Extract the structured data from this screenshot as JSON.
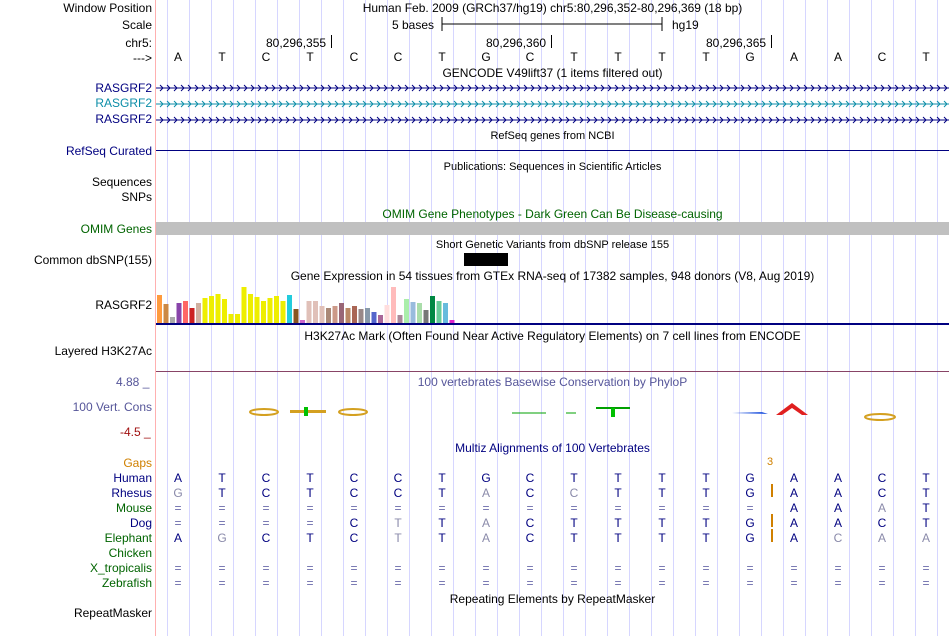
{
  "header": {
    "window_label": "Window Position",
    "window_text": "Human Feb. 2009 (GRCh37/hg19)  chr5:80,296,352-80,296,369 (18 bp)",
    "scale_label": "Scale",
    "scale_text": "5 bases",
    "scale_assembly": "hg19",
    "chrom_label": "chr5:",
    "pos_ticks": [
      "80,296,355",
      "80,296,360",
      "80,296,365"
    ],
    "arrow_label": "--->",
    "sequence": [
      "A",
      "T",
      "C",
      "T",
      "C",
      "C",
      "T",
      "G",
      "C",
      "T",
      "T",
      "T",
      "T",
      "G",
      "A",
      "A",
      "C",
      "T"
    ]
  },
  "tracks": {
    "gencode": {
      "title": "GENCODE V49lift37 (1 items filtered out)",
      "items": [
        {
          "label": "RASGRF2",
          "color": "#000080"
        },
        {
          "label": "RASGRF2",
          "color": "#0c8ea8"
        },
        {
          "label": "RASGRF2",
          "color": "#000080"
        }
      ]
    },
    "refseq": {
      "title": "RefSeq genes from NCBI",
      "label": "RefSeq Curated"
    },
    "publications": {
      "title": "Publications: Sequences in Scientific Articles",
      "label1": "Sequences",
      "label2": "SNPs"
    },
    "omim": {
      "title": "OMIM Gene Phenotypes - Dark Green Can Be Disease-causing",
      "label": "OMIM Genes"
    },
    "dbsnp": {
      "title": "Short Genetic Variants from dbSNP release 155",
      "label": "Common dbSNP(155)"
    },
    "gtex": {
      "title": "Gene Expression in 54 tissues from GTEx RNA-seq of 17382 samples, 948 donors (V8, Aug 2019)",
      "label": "RASGRF2",
      "bars": [
        {
          "v": 1.0,
          "c": "#ff9a3d"
        },
        {
          "v": 0.68,
          "c": "#cc8844"
        },
        {
          "v": 0.2,
          "c": "#aaaaaa"
        },
        {
          "v": 0.72,
          "c": "#8844aa"
        },
        {
          "v": 0.78,
          "c": "#ff6666"
        },
        {
          "v": 0.52,
          "c": "#cc2222"
        },
        {
          "v": 0.7,
          "c": "#d0b0a0"
        },
        {
          "v": 0.88,
          "c": "#eeee00"
        },
        {
          "v": 0.95,
          "c": "#eeee00"
        },
        {
          "v": 1.05,
          "c": "#eeee00"
        },
        {
          "v": 0.85,
          "c": "#eeee00"
        },
        {
          "v": 0.32,
          "c": "#eeee00"
        },
        {
          "v": 0.32,
          "c": "#eeee00"
        },
        {
          "v": 1.3,
          "c": "#eeee00"
        },
        {
          "v": 1.02,
          "c": "#eeee00"
        },
        {
          "v": 0.92,
          "c": "#eeee00"
        },
        {
          "v": 0.8,
          "c": "#eeee00"
        },
        {
          "v": 0.88,
          "c": "#eeee00"
        },
        {
          "v": 0.95,
          "c": "#eeee00"
        },
        {
          "v": 0.78,
          "c": "#eeee00"
        },
        {
          "v": 1.0,
          "c": "#22ccdd"
        },
        {
          "v": 0.5,
          "c": "#885522"
        },
        {
          "v": 0.12,
          "c": "#cc66cc"
        },
        {
          "v": 0.78,
          "c": "#e0c0b8"
        },
        {
          "v": 0.8,
          "c": "#e0c0b8"
        },
        {
          "v": 0.62,
          "c": "#e0c0b8"
        },
        {
          "v": 0.55,
          "c": "#aa8877"
        },
        {
          "v": 0.62,
          "c": "#cc9988"
        },
        {
          "v": 0.72,
          "c": "#996677"
        },
        {
          "v": 0.55,
          "c": "#bb8866"
        },
        {
          "v": 0.62,
          "c": "#aa6655"
        },
        {
          "v": 0.5,
          "c": "#998888"
        },
        {
          "v": 0.52,
          "c": "#8899aa"
        },
        {
          "v": 0.4,
          "c": "#5566cc"
        },
        {
          "v": 0.28,
          "c": "#aa6699"
        },
        {
          "v": 0.65,
          "c": "#ffdddd"
        },
        {
          "v": 1.3,
          "c": "#ffbbbb"
        },
        {
          "v": 0.28,
          "c": "#aa8899"
        },
        {
          "v": 0.85,
          "c": "#aaeeaa"
        },
        {
          "v": 0.75,
          "c": "#99bbdd"
        },
        {
          "v": 0.7,
          "c": "#aaddaa"
        },
        {
          "v": 0.48,
          "c": "#777777"
        },
        {
          "v": 0.95,
          "c": "#008844"
        },
        {
          "v": 0.78,
          "c": "#66cc99"
        },
        {
          "v": 0.72,
          "c": "#66bbdd"
        },
        {
          "v": 0.12,
          "c": "#dd22cc"
        }
      ]
    },
    "h3k27ac": {
      "title": "H3K27Ac Mark (Often Found Near Active Regulatory Elements) on 7 cell lines from ENCODE",
      "label": "Layered H3K27Ac"
    },
    "phylop": {
      "title": "100 vertebrates Basewise Conservation by PhyloP",
      "label": "100 Vert. Cons",
      "ymax": "4.88 _",
      "ymin": "-4.5 _"
    },
    "multiz": {
      "title": "Multiz Alignments of 100 Vertebrates",
      "gaps_label": "Gaps",
      "gaps_value": "3",
      "species": [
        {
          "name": "Human",
          "color": "#000080",
          "bases": [
            "A",
            "T",
            "C",
            "T",
            "C",
            "C",
            "T",
            "G",
            "C",
            "T",
            "T",
            "T",
            "T",
            "G",
            "A",
            "A",
            "C",
            "T"
          ]
        },
        {
          "name": "Rhesus",
          "color": "#000080",
          "bases": [
            "G",
            "T",
            "C",
            "T",
            "C",
            "C",
            "T",
            "A",
            "C",
            "C",
            "T",
            "T",
            "T",
            "G",
            "A",
            "A",
            "C",
            "T"
          ]
        },
        {
          "name": "Mouse",
          "color": "#006400",
          "bases": [
            "=",
            "=",
            "=",
            "=",
            "=",
            "=",
            "=",
            "=",
            "=",
            "=",
            "=",
            "=",
            "=",
            "=",
            "A",
            "A",
            "A",
            "T"
          ]
        },
        {
          "name": "Dog",
          "color": "#000080",
          "bases": [
            "=",
            "=",
            "=",
            "=",
            "C",
            "T",
            "T",
            "A",
            "C",
            "T",
            "T",
            "T",
            "T",
            "G",
            "A",
            "A",
            "C",
            "T"
          ]
        },
        {
          "name": "Elephant",
          "color": "#006400",
          "bases": [
            "A",
            "G",
            "C",
            "T",
            "C",
            "T",
            "T",
            "A",
            "C",
            "T",
            "T",
            "T",
            "T",
            "G",
            "A",
            "C",
            "A",
            "A"
          ]
        },
        {
          "name": "Chicken",
          "color": "#006400",
          "bases": []
        },
        {
          "name": "X_tropicalis",
          "color": "#006400",
          "bases": [
            "=",
            "=",
            "=",
            "=",
            "=",
            "=",
            "=",
            "=",
            "=",
            "=",
            "=",
            "=",
            "=",
            "=",
            "=",
            "=",
            "=",
            "="
          ]
        },
        {
          "name": "Zebrafish",
          "color": "#006400",
          "bases": [
            "=",
            "=",
            "=",
            "=",
            "=",
            "=",
            "=",
            "=",
            "=",
            "=",
            "=",
            "=",
            "=",
            "=",
            "=",
            "=",
            "=",
            "="
          ]
        }
      ]
    },
    "repeatmasker": {
      "title": "Repeating Elements by RepeatMasker",
      "label": "RepeatMasker"
    }
  },
  "colors": {
    "navy": "#000080",
    "omim_bar": "#c0c0c0",
    "omim_title": "#006400",
    "phylop_pos": "#00a000",
    "phylop_neg": "#d4a020",
    "phylop_label": "#555599",
    "gaps": "#d08000",
    "gridline": "#d6d6ff"
  }
}
